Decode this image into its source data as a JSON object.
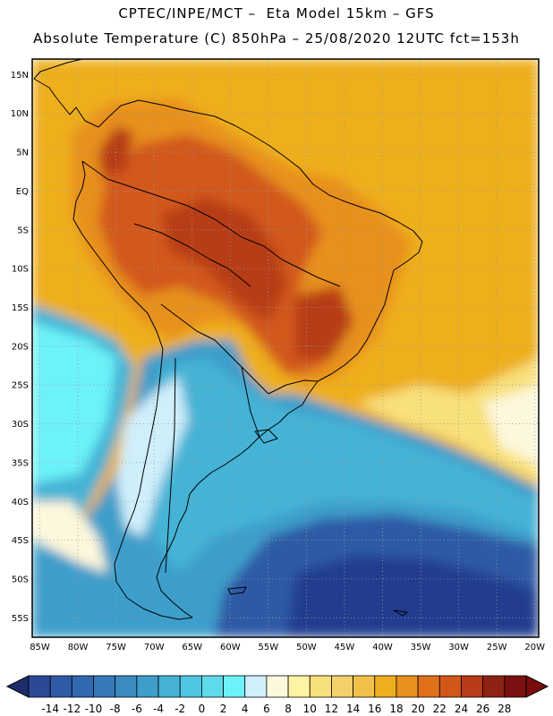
{
  "header": {
    "line1": "CPTEC/INPE/MCT –  Eta Model 15km – GFS",
    "line2": "Absolute Temperature (C) 850hPa – 25/08/2020 12UTC fct=153h"
  },
  "map": {
    "lat_labels": [
      "15N",
      "10N",
      "5N",
      "EQ",
      "5S",
      "10S",
      "15S",
      "20S",
      "25S",
      "30S",
      "35S",
      "40S",
      "45S",
      "50S",
      "55S"
    ],
    "lon_labels": [
      "85W",
      "80W",
      "75W",
      "70W",
      "65W",
      "60W",
      "55W",
      "50W",
      "45W",
      "40W",
      "35W",
      "30W",
      "25W",
      "20W"
    ],
    "lat_values": [
      15,
      10,
      5,
      0,
      -5,
      -10,
      -15,
      -20,
      -25,
      -30,
      -35,
      -40,
      -45,
      -50,
      -55
    ],
    "lon_values": [
      -85,
      -80,
      -75,
      -70,
      -65,
      -60,
      -55,
      -50,
      -45,
      -40,
      -35,
      -30,
      -25,
      -20
    ],
    "lat_range": [
      -57.5,
      17
    ],
    "lon_range": [
      -86,
      -19.5
    ],
    "gridlines": "dotted",
    "coastline_color": "#000000"
  },
  "colorbar": {
    "labels": [
      "-14",
      "-12",
      "-10",
      "-8",
      "-6",
      "-4",
      "-2",
      "0",
      "2",
      "4",
      "6",
      "8",
      "10",
      "12",
      "14",
      "16",
      "18",
      "20",
      "22",
      "24",
      "26",
      "28"
    ],
    "colors": [
      "#2a4a95",
      "#2f5aa5",
      "#3268b0",
      "#3679b8",
      "#3a8cc2",
      "#3e9ecb",
      "#44b3d6",
      "#4fc7e0",
      "#5fdaea",
      "#6cf2f8",
      "#cfeffb",
      "#fdf7dc",
      "#fcf3a3",
      "#f8e07a",
      "#f3d06a",
      "#f0c24a",
      "#eeaf1e",
      "#e8901c",
      "#e0711a",
      "#d2581a",
      "#b73c17",
      "#8e2314",
      "#7a1010"
    ],
    "left_arrow_color": "#1d2d6b",
    "right_arrow_color": "#7a0b0b",
    "unit": "C"
  },
  "field_colors": {
    "deep_ocean": "#243c8e",
    "mid_ocean": "#2f5aa5",
    "cold_blue": "#3e9ecb",
    "cyan": "#44b3d6",
    "light_cyan": "#6cf2f8",
    "pale_cyan": "#cfeffb",
    "cream": "#fdf7dc",
    "yellow": "#f8e07a",
    "gold": "#eeaf1e",
    "orange": "#e8901c",
    "dark_orange": "#d2581a",
    "rust": "#b73c17"
  }
}
